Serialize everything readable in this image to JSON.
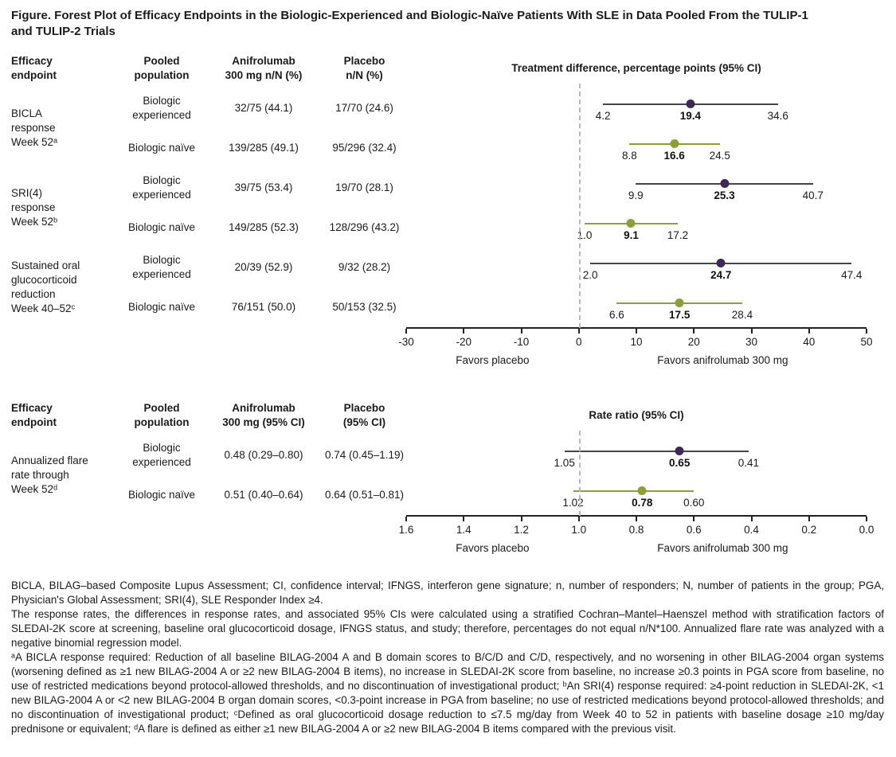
{
  "title": "Figure. Forest Plot of Efficacy Endpoints in the Biologic-Experienced and Biologic-Naïve Patients With SLE in Data Pooled From the TULIP-1\nand TULIP-2 Trials",
  "colors": {
    "experienced_point": "#3b2a55",
    "experienced_line": "#454545",
    "naive_point": "#8f9d3c",
    "naive_line": "#8f9d3c",
    "reference_line": "#b9b9b9",
    "axis": "#222222"
  },
  "chart_data": [
    {
      "type": "forest",
      "plot_title": "Treatment difference, percentage points (95% CI)",
      "columns": {
        "endpoint": "Efficacy\nendpoint",
        "population": "Pooled\npopulation",
        "drug": "Anifrolumab\n300 mg n/N (%)",
        "placebo": "Placebo\nn/N (%)"
      },
      "axis": {
        "min": -30,
        "max": 50,
        "reference": 0,
        "tick_values": [
          -30,
          -20,
          -10,
          0,
          10,
          20,
          30,
          40,
          50
        ],
        "ticks": [
          "-30",
          "-20",
          "-10",
          "0",
          "10",
          "20",
          "30",
          "40",
          "50"
        ]
      },
      "favors_left": "Favors placebo",
      "favors_right": "Favors anifrolumab 300 mg",
      "groups": [
        {
          "endpoint": "BICLA\nresponse\nWeek 52ᵃ",
          "rows": [
            {
              "population": "Biologic\nexperienced",
              "drug": "32/75 (44.1)",
              "placebo": "17/70 (24.6)",
              "estimate": 19.4,
              "estimate_label": "19.4",
              "ci": [
                4.2,
                34.6
              ],
              "ci_labels": [
                "4.2",
                "34.6"
              ],
              "style": "experienced"
            },
            {
              "population": "Biologic naïve",
              "drug": "139/285 (49.1)",
              "placebo": "95/296 (32.4)",
              "estimate": 16.6,
              "estimate_label": "16.6",
              "ci": [
                8.8,
                24.5
              ],
              "ci_labels": [
                "8.8",
                "24.5"
              ],
              "style": "naive"
            }
          ]
        },
        {
          "endpoint": "SRI(4)\nresponse\nWeek 52ᵇ",
          "rows": [
            {
              "population": "Biologic\nexperienced",
              "drug": "39/75 (53.4)",
              "placebo": "19/70 (28.1)",
              "estimate": 25.3,
              "estimate_label": "25.3",
              "ci": [
                9.9,
                40.7
              ],
              "ci_labels": [
                "9.9",
                "40.7"
              ],
              "style": "experienced"
            },
            {
              "population": "Biologic naïve",
              "drug": "149/285 (52.3)",
              "placebo": "128/296 (43.2)",
              "estimate": 9.1,
              "estimate_label": "9.1",
              "ci": [
                1.0,
                17.2
              ],
              "ci_labels": [
                "1.0",
                "17.2"
              ],
              "style": "naive"
            }
          ]
        },
        {
          "endpoint": "Sustained oral\nglucocorticoid\nreduction\nWeek 40–52ᶜ",
          "rows": [
            {
              "population": "Biologic\nexperienced",
              "drug": "20/39 (52.9)",
              "placebo": "9/32 (28.2)",
              "estimate": 24.7,
              "estimate_label": "24.7",
              "ci": [
                2.0,
                47.4
              ],
              "ci_labels": [
                "2.0",
                "47.4"
              ],
              "style": "experienced"
            },
            {
              "population": "Biologic naïve",
              "drug": "76/151 (50.0)",
              "placebo": "50/153 (32.5)",
              "estimate": 17.5,
              "estimate_label": "17.5",
              "ci": [
                6.6,
                28.4
              ],
              "ci_labels": [
                "6.6",
                "28.4"
              ],
              "style": "naive"
            }
          ]
        }
      ]
    },
    {
      "type": "forest",
      "plot_title": "Rate ratio (95% CI)",
      "columns": {
        "endpoint": "Efficacy\nendpoint",
        "population": "Pooled\npopulation",
        "drug": "Anifrolumab\n300 mg (95% CI)",
        "placebo": "Placebo\n(95% CI)"
      },
      "axis": {
        "min": 1.6,
        "max": 0.0,
        "reference": 1.0,
        "tick_values": [
          1.6,
          1.4,
          1.2,
          1.0,
          0.8,
          0.6,
          0.4,
          0.2,
          0.0
        ],
        "ticks": [
          "1.6",
          "1.4",
          "1.2",
          "1.0",
          "0.8",
          "0.6",
          "0.4",
          "0.2",
          "0.0"
        ]
      },
      "favors_left": "Favors placebo",
      "favors_right": "Favors anifrolumab 300 mg",
      "groups": [
        {
          "endpoint": "Annualized flare\nrate through\nWeek 52ᵈ",
          "rows": [
            {
              "population": "Biologic\nexperienced",
              "drug": "0.48 (0.29–0.80)",
              "placebo": "0.74 (0.45–1.19)",
              "estimate": 0.65,
              "estimate_label": "0.65",
              "ci": [
                1.05,
                0.41
              ],
              "ci_labels": [
                "1.05",
                "0.41"
              ],
              "style": "experienced"
            },
            {
              "population": "Biologic naïve",
              "drug": "0.51 (0.40–0.64)",
              "placebo": "0.64 (0.51–0.81)",
              "estimate": 0.78,
              "estimate_label": "0.78",
              "ci": [
                1.02,
                0.6
              ],
              "ci_labels": [
                "1.02",
                "0.60"
              ],
              "style": "naive"
            }
          ]
        }
      ]
    }
  ],
  "footnotes": [
    "BICLA, BILAG–based Composite Lupus Assessment; CI, confidence interval; IFNGS, interferon gene signature; n, number of responders; N, number of patients in the group; PGA, Physician's Global Assessment; SRI(4), SLE Responder Index ≥4.",
    "The response rates, the differences in response rates, and associated 95% CIs were calculated using a stratified Cochran–Mantel–Haenszel method with stratification factors of SLEDAI-2K score at screening, baseline oral glucocorticoid dosage, IFNGS status, and study; therefore, percentages do not equal n/N*100. Annualized flare rate was analyzed with a negative binomial regression model.",
    "ᵃA BICLA response required: Reduction of all baseline BILAG-2004 A and B domain scores to B/C/D and C/D, respectively, and no worsening in other BILAG-2004 organ systems (worsening defined as ≥1 new BILAG-2004 A or ≥2 new BILAG-2004 B items), no increase in SLEDAI-2K score from baseline, no increase ≥0.3 points in PGA score from baseline, no use of restricted medications beyond protocol-allowed thresholds, and no discontinuation of investigational product; ᵇAn SRI(4) response required: ≥4-point reduction in SLEDAI-2K, <1 new BILAG-2004 A or <2 new BILAG-2004 B organ domain scores, <0.3-point increase in PGA from baseline; no use of restricted medications beyond protocol-allowed thresholds; and no discontinuation of investigational product; ᶜDefined as oral glucocorticoid dosage reduction to ≤7.5 mg/day from Week 40 to 52 in patients with baseline dosage ≥10 mg/day prednisone or equivalent; ᵈA flare is defined as either ≥1 new BILAG-2004 A or ≥2 new BILAG-2004 B items compared with the previous visit."
  ]
}
